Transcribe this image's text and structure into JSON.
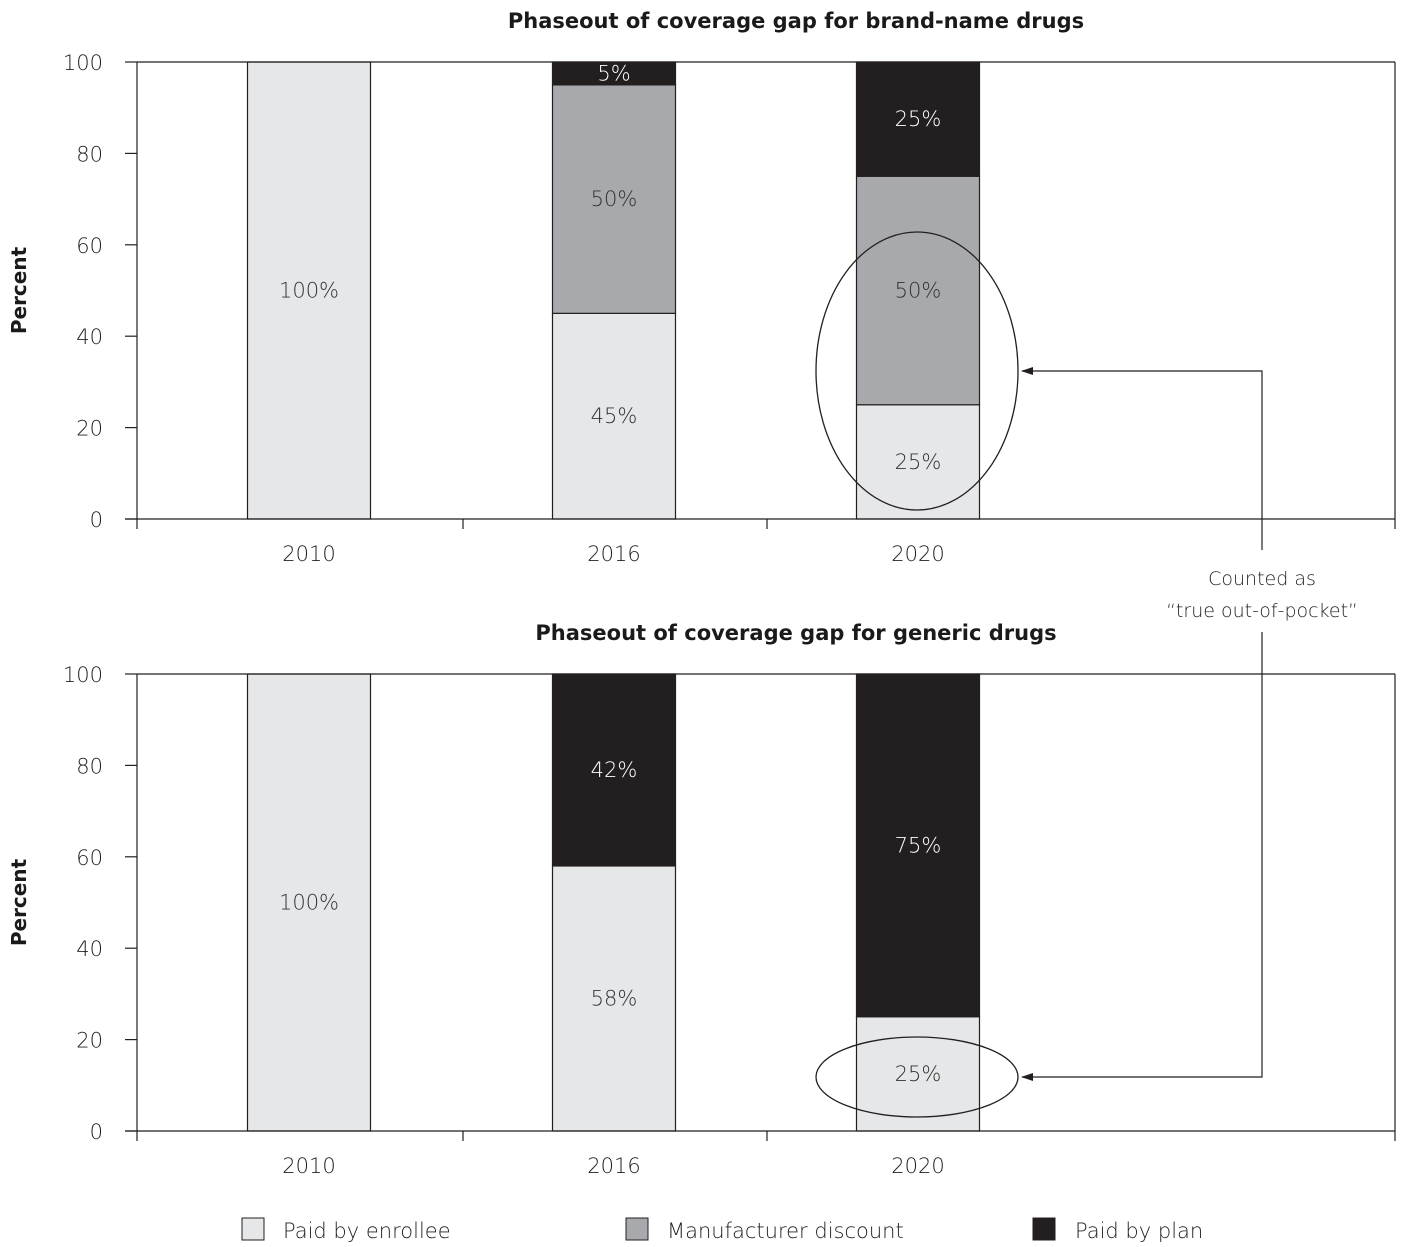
{
  "colors": {
    "enrollee": "#e6e7e8",
    "manufacturer": "#a7a9ac",
    "plan": "#231f20",
    "axis": "#231f20"
  },
  "chart_data": [
    {
      "type": "bar",
      "stacked": true,
      "title": "Phaseout of coverage gap for brand-name drugs",
      "ylabel": "Percent",
      "ylim": [
        0,
        100
      ],
      "yticks": [
        "0",
        "20",
        "40",
        "60",
        "80",
        "100"
      ],
      "categories": [
        "2010",
        "2016",
        "2020"
      ],
      "series": [
        {
          "name": "Paid by enrollee",
          "values": [
            100,
            45,
            25
          ],
          "labels": [
            "100%",
            "45%",
            "25%"
          ]
        },
        {
          "name": "Manufacturer discount",
          "values": [
            0,
            50,
            50
          ],
          "labels": [
            "",
            "50%",
            "50%"
          ]
        },
        {
          "name": "Paid by plan",
          "values": [
            0,
            5,
            25
          ],
          "labels": [
            "",
            "5%",
            "25%"
          ]
        }
      ]
    },
    {
      "type": "bar",
      "stacked": true,
      "title": "Phaseout of coverage gap for generic drugs",
      "ylabel": "Percent",
      "ylim": [
        0,
        100
      ],
      "yticks": [
        "0",
        "20",
        "40",
        "60",
        "80",
        "100"
      ],
      "categories": [
        "2010",
        "2016",
        "2020"
      ],
      "series": [
        {
          "name": "Paid by enrollee",
          "values": [
            100,
            58,
            25
          ],
          "labels": [
            "100%",
            "58%",
            "25%"
          ]
        },
        {
          "name": "Manufacturer discount",
          "values": [
            0,
            0,
            0
          ],
          "labels": [
            "",
            "",
            ""
          ]
        },
        {
          "name": "Paid by plan",
          "values": [
            0,
            42,
            75
          ],
          "labels": [
            "",
            "42%",
            "75%"
          ]
        }
      ]
    }
  ],
  "legend": {
    "placement": "bottom",
    "items": [
      "Paid by enrollee",
      "Manufacturer discount",
      "Paid by plan"
    ]
  },
  "annotation": {
    "line1": "Counted as",
    "line2": "“true out-of-pocket”"
  }
}
